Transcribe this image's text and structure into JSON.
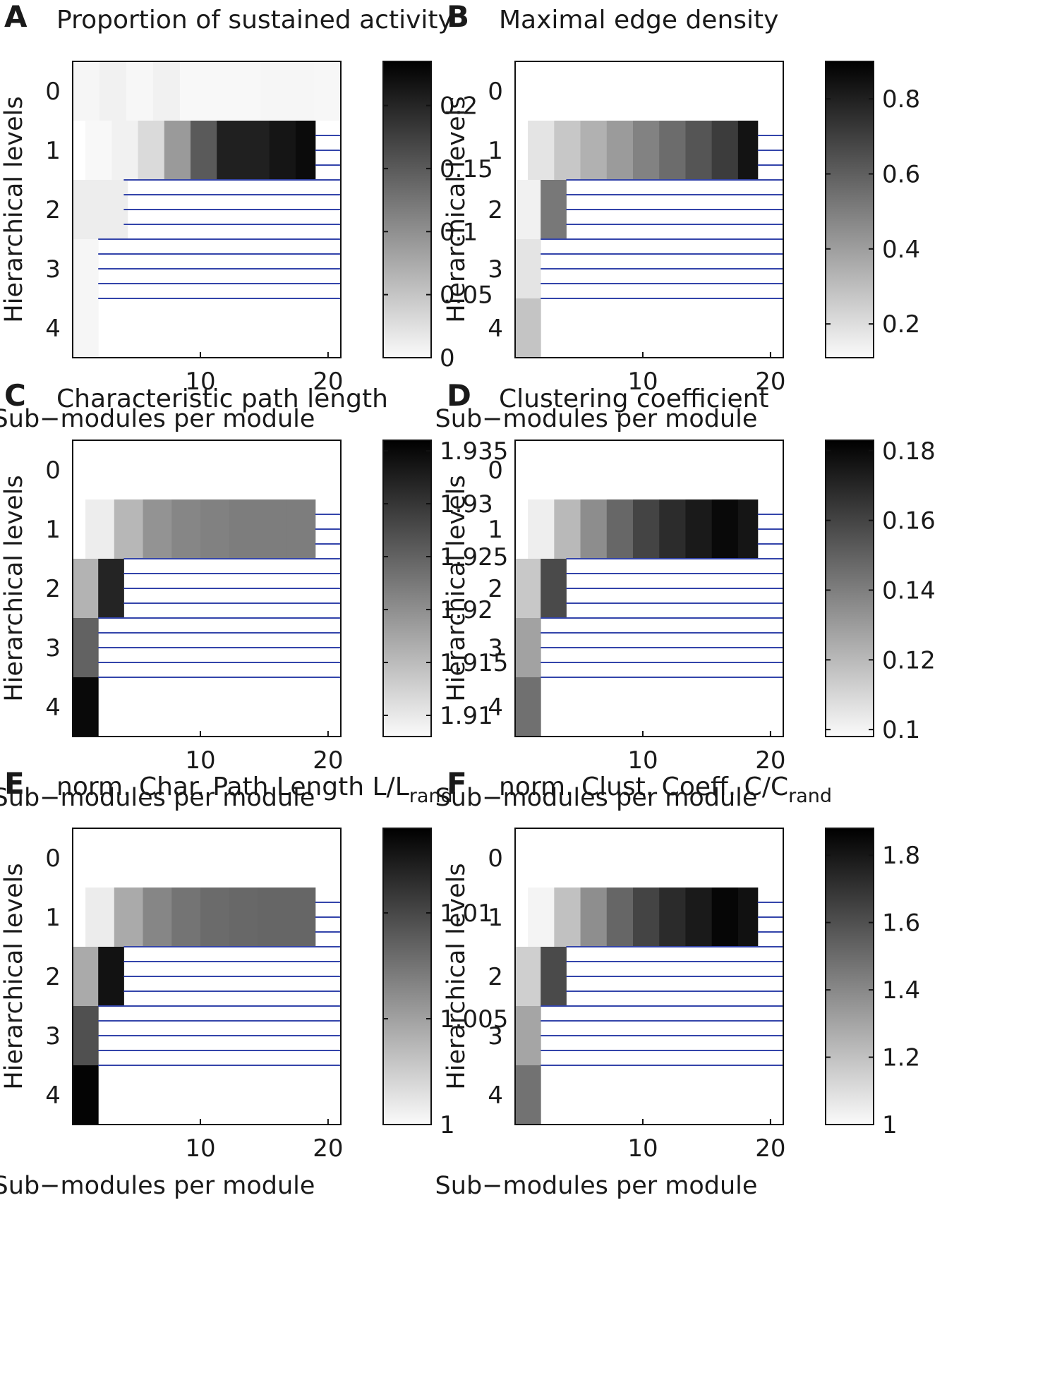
{
  "figure": {
    "xlabel": "Sub−modules per module",
    "ylabel": "Hierarchical levels",
    "x_ticks": [
      10,
      20
    ],
    "y_ticks": [
      "0",
      "1",
      "2",
      "3",
      "4"
    ],
    "line_color": "#3344aa"
  },
  "chart_data": [
    {
      "type": "heatmap",
      "letter": "A",
      "title": "Proportion of sustained activity",
      "xlabel": "Sub−modules per module",
      "ylabel": "Hierarchical levels",
      "x_ticks": [
        10,
        20
      ],
      "xlim": [
        0,
        21
      ],
      "y_ticks": [
        "0",
        "1",
        "2",
        "3",
        "4"
      ],
      "colorbar_range": [
        0,
        0.235
      ],
      "colorbar_ticks": [
        {
          "value": 0,
          "label": "0"
        },
        {
          "value": 0.05,
          "label": "0.05"
        },
        {
          "value": 0.1,
          "label": "0.1"
        },
        {
          "value": 0.15,
          "label": "0.15"
        },
        {
          "value": 0.2,
          "label": "0.2"
        }
      ],
      "levels": [
        {
          "level": 0,
          "values": [
            0.004,
            0.008,
            0.003,
            0.008,
            0.002,
            0.002,
            0.002,
            0.004,
            0.004,
            0.003
          ]
        },
        {
          "level": 1,
          "values": [
            0.002,
            0.008,
            0.03,
            0.09,
            0.15,
            0.205,
            0.205,
            0.215,
            0.225
          ]
        },
        {
          "level": 2,
          "values": [
            0.012,
            0.012
          ]
        },
        {
          "level": 3,
          "values": [
            0.004
          ]
        },
        {
          "level": 4,
          "values": [
            0.004
          ]
        }
      ]
    },
    {
      "type": "heatmap",
      "letter": "B",
      "title": "Maximal edge density",
      "xlabel": "Sub−modules per module",
      "ylabel": "Hierarchical levels",
      "x_ticks": [
        10,
        20
      ],
      "xlim": [
        0,
        21
      ],
      "y_ticks": [
        "0",
        "1",
        "2",
        "3",
        "4"
      ],
      "colorbar_range": [
        0.11,
        0.9
      ],
      "colorbar_ticks": [
        {
          "value": 0.2,
          "label": "0.2"
        },
        {
          "value": 0.4,
          "label": "0.4"
        },
        {
          "value": 0.6,
          "label": "0.6"
        },
        {
          "value": 0.8,
          "label": "0.8"
        }
      ],
      "levels": [
        {
          "level": 0,
          "values": []
        },
        {
          "level": 1,
          "values": [
            0.18,
            0.27,
            0.34,
            0.41,
            0.49,
            0.56,
            0.63,
            0.71,
            0.84
          ]
        },
        {
          "level": 2,
          "values": [
            0.14,
            0.52
          ]
        },
        {
          "level": 3,
          "values": [
            0.18
          ]
        },
        {
          "level": 4,
          "values": [
            0.28
          ]
        }
      ]
    },
    {
      "type": "heatmap",
      "letter": "C",
      "title": "Characteristic path length",
      "xlabel": "Sub−modules per module",
      "ylabel": "Hierarchical levels",
      "x_ticks": [
        10,
        20
      ],
      "xlim": [
        0,
        21
      ],
      "y_ticks": [
        "0",
        "1",
        "2",
        "3",
        "4"
      ],
      "colorbar_range": [
        1.908,
        1.936
      ],
      "colorbar_ticks": [
        {
          "value": 1.91,
          "label": "1.91"
        },
        {
          "value": 1.915,
          "label": "1.915"
        },
        {
          "value": 1.92,
          "label": "1.92"
        },
        {
          "value": 1.925,
          "label": "1.925"
        },
        {
          "value": 1.93,
          "label": "1.93"
        },
        {
          "value": 1.935,
          "label": "1.935"
        }
      ],
      "levels": [
        {
          "level": 0,
          "values": []
        },
        {
          "level": 1,
          "values": [
            1.9095,
            1.9155,
            1.9195,
            1.921,
            1.9215,
            1.922,
            1.922,
            1.922
          ]
        },
        {
          "level": 2,
          "values": [
            1.916,
            1.932
          ]
        },
        {
          "level": 3,
          "values": [
            1.925
          ]
        },
        {
          "level": 4,
          "values": [
            1.935
          ]
        }
      ]
    },
    {
      "type": "heatmap",
      "letter": "D",
      "title": "Clustering coefficient",
      "xlabel": "Sub−modules per module",
      "ylabel": "Hierarchical levels",
      "x_ticks": [
        10,
        20
      ],
      "xlim": [
        0,
        21
      ],
      "y_ticks": [
        "0",
        "1",
        "2",
        "3",
        "4"
      ],
      "colorbar_range": [
        0.098,
        0.183
      ],
      "colorbar_ticks": [
        {
          "value": 0.1,
          "label": "0.1"
        },
        {
          "value": 0.12,
          "label": "0.12"
        },
        {
          "value": 0.14,
          "label": "0.14"
        },
        {
          "value": 0.16,
          "label": "0.16"
        },
        {
          "value": 0.18,
          "label": "0.18"
        }
      ],
      "levels": [
        {
          "level": 0,
          "values": []
        },
        {
          "level": 1,
          "values": [
            0.102,
            0.12,
            0.135,
            0.148,
            0.16,
            0.168,
            0.174,
            0.18,
            0.176
          ]
        },
        {
          "level": 2,
          "values": [
            0.115,
            0.158
          ]
        },
        {
          "level": 3,
          "values": [
            0.128
          ]
        },
        {
          "level": 4,
          "values": [
            0.145
          ]
        }
      ]
    },
    {
      "type": "heatmap",
      "letter": "E",
      "title": "norm. Char. Path Length L/L",
      "title_subscript": "rand",
      "xlabel": "Sub−modules per module",
      "ylabel": "Hierarchical levels",
      "x_ticks": [
        10,
        20
      ],
      "xlim": [
        0,
        21
      ],
      "y_ticks": [
        "0",
        "1",
        "2",
        "3",
        "4"
      ],
      "colorbar_range": [
        1.0,
        1.014
      ],
      "colorbar_ticks": [
        {
          "value": 1.0,
          "label": "1"
        },
        {
          "value": 1.005,
          "label": "1.005"
        },
        {
          "value": 1.01,
          "label": "1.01"
        }
      ],
      "levels": [
        {
          "level": 0,
          "values": []
        },
        {
          "level": 1,
          "values": [
            1.0008,
            1.0045,
            1.0065,
            1.0075,
            1.008,
            1.0082,
            1.0083,
            1.0083
          ]
        },
        {
          "level": 2,
          "values": [
            1.0045,
            1.013
          ]
        },
        {
          "level": 3,
          "values": [
            1.0095
          ]
        },
        {
          "level": 4,
          "values": [
            1.0138
          ]
        }
      ]
    },
    {
      "type": "heatmap",
      "letter": "F",
      "title": "norm. Clust. Coeff. C/C",
      "title_subscript": "rand",
      "xlabel": "Sub−modules per module",
      "ylabel": "Hierarchical levels",
      "x_ticks": [
        10,
        20
      ],
      "xlim": [
        0,
        21
      ],
      "y_ticks": [
        "0",
        "1",
        "2",
        "3",
        "4"
      ],
      "colorbar_range": [
        1.0,
        1.88
      ],
      "colorbar_ticks": [
        {
          "value": 1.0,
          "label": "1"
        },
        {
          "value": 1.2,
          "label": "1.2"
        },
        {
          "value": 1.4,
          "label": "1.4"
        },
        {
          "value": 1.6,
          "label": "1.6"
        },
        {
          "value": 1.8,
          "label": "1.8"
        }
      ],
      "levels": [
        {
          "level": 0,
          "values": []
        },
        {
          "level": 1,
          "values": [
            1.02,
            1.2,
            1.38,
            1.52,
            1.64,
            1.73,
            1.79,
            1.86,
            1.82
          ]
        },
        {
          "level": 2,
          "values": [
            1.15,
            1.62
          ]
        },
        {
          "level": 3,
          "values": [
            1.3
          ]
        },
        {
          "level": 4,
          "values": [
            1.48
          ]
        }
      ]
    }
  ]
}
